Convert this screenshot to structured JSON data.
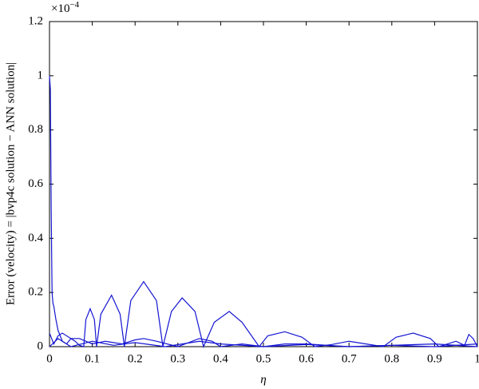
{
  "chart_data": {
    "type": "line",
    "xlabel": "η",
    "ylabel": "Error (velocity) = |bvp4c solution − ANN solution|",
    "axis_multiplier": "×10",
    "axis_multiplier_exponent": "−4",
    "xlim": [
      0,
      1
    ],
    "xticks": [
      0,
      0.1,
      0.2,
      0.3,
      0.4,
      0.5,
      0.6,
      0.7,
      0.8,
      0.9,
      1
    ],
    "ylim": [
      0,
      1.2
    ],
    "yticks": [
      0,
      0.2,
      0.4,
      0.6,
      0.8,
      1,
      1.2
    ],
    "grid": false,
    "series": [
      {
        "color": "#1414d2",
        "x": [
          0,
          0.002,
          0.004,
          0.006,
          0.008,
          0.01,
          0.015,
          0.02,
          0.03,
          0.04,
          0.05,
          0.06,
          0.07,
          0.08,
          0.085,
          0.095,
          0.105,
          0.11,
          0.12,
          0.145,
          0.165,
          0.175,
          0.19,
          0.22,
          0.25,
          0.265,
          0.285,
          0.31,
          0.34,
          0.36,
          0.385,
          0.42,
          0.45,
          0.49,
          0.51,
          0.55,
          0.59,
          0.62,
          0.66,
          0.7,
          0.78,
          0.81,
          0.85,
          0.89,
          0.91,
          0.95,
          0.97,
          0.98,
          0.99,
          1
        ],
        "values": [
          1.0,
          0.95,
          0.5,
          0.2,
          0.16,
          0.15,
          0.1,
          0.06,
          0.02,
          0.01,
          0.03,
          0.02,
          0.005,
          0,
          0.1,
          0.14,
          0.1,
          0,
          0.12,
          0.19,
          0.12,
          0,
          0.17,
          0.24,
          0.17,
          0,
          0.13,
          0.18,
          0.13,
          0,
          0.09,
          0.13,
          0.09,
          0,
          0.04,
          0.055,
          0.035,
          0,
          0.008,
          0.02,
          0,
          0.035,
          0.05,
          0.03,
          0,
          0.02,
          0.005,
          0.045,
          0.03,
          0
        ]
      },
      {
        "color": "#1414d2",
        "x": [
          0,
          0.01,
          0.02,
          0.03,
          0.05,
          0.07,
          0.1,
          0.13,
          0.17,
          0.2,
          0.22,
          0.25,
          0.3,
          0.35,
          0.38,
          0.4,
          0.45,
          0.5,
          0.55,
          0.6,
          0.65,
          0.7,
          0.8,
          0.9,
          1
        ],
        "values": [
          0.05,
          0.01,
          0.04,
          0.05,
          0.03,
          0.03,
          0.01,
          0.02,
          0.01,
          0.025,
          0.03,
          0.02,
          0,
          0.03,
          0.02,
          0,
          0.01,
          0,
          0.01,
          0.01,
          0.005,
          0,
          0.005,
          0.01,
          0
        ]
      },
      {
        "color": "#1414d2",
        "x": [
          0,
          0.02,
          0.05,
          0.1,
          0.15,
          0.2,
          0.27,
          0.35,
          0.4,
          0.5,
          0.6,
          0.7,
          0.8,
          0.9,
          1
        ],
        "values": [
          0,
          0.03,
          0,
          0.02,
          0.005,
          0.015,
          0,
          0.02,
          0.01,
          0,
          0.008,
          0,
          0.005,
          0,
          0.01
        ]
      }
    ]
  }
}
